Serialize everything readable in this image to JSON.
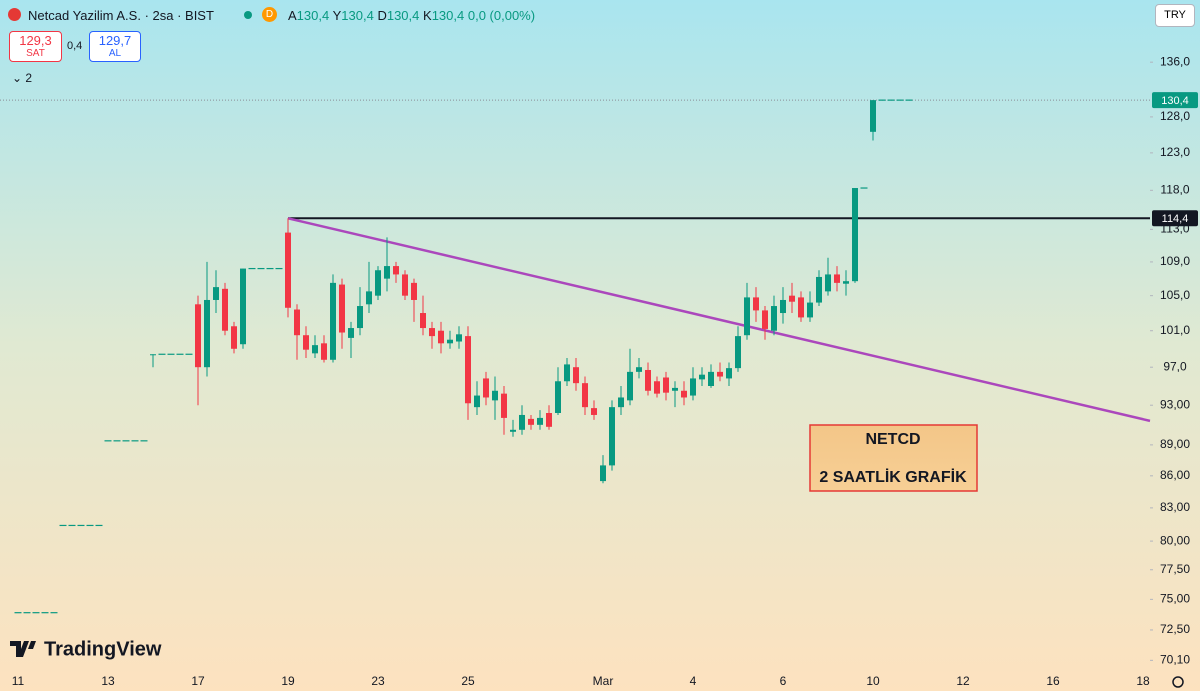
{
  "header": {
    "symbol": "Netcad Yazilim A.S. · 2sa · BIST",
    "badge": "D",
    "ohlc": [
      {
        "label": "A",
        "value": "130,4"
      },
      {
        "label": "Y",
        "value": "130,4"
      },
      {
        "label": "D",
        "value": "130,4"
      },
      {
        "label": "K",
        "value": "130,4"
      }
    ],
    "change": "0,0 (0,00%)",
    "sell": {
      "price": "129,3",
      "label": "SAT"
    },
    "spread": "0,4",
    "buy": {
      "price": "129,7",
      "label": "AL"
    },
    "indicators": "2",
    "currency": "TRY",
    "logo": "TradingView"
  },
  "chart_data": {
    "type": "candlestick",
    "up_color": "#089981",
    "down_color": "#f23645",
    "log_scale": true,
    "grid": false,
    "ylim": [
      69.2,
      145.7
    ],
    "yticks": [
      {
        "value": 136,
        "label": "136,0"
      },
      {
        "value": 128,
        "label": "128,0"
      },
      {
        "value": 123,
        "label": "123,0"
      },
      {
        "value": 118,
        "label": "118,0"
      },
      {
        "value": 113,
        "label": "113,0"
      },
      {
        "value": 109,
        "label": "109,0"
      },
      {
        "value": 105,
        "label": "105,0"
      },
      {
        "value": 101,
        "label": "101,0"
      },
      {
        "value": 97,
        "label": "97,0"
      },
      {
        "value": 93,
        "label": "93,00"
      },
      {
        "value": 89,
        "label": "89,00"
      },
      {
        "value": 86,
        "label": "86,00"
      },
      {
        "value": 83,
        "label": "83,00"
      },
      {
        "value": 80,
        "label": "80,00"
      },
      {
        "value": 77.5,
        "label": "77,50"
      },
      {
        "value": 75,
        "label": "75,00"
      },
      {
        "value": 72.5,
        "label": "72,50"
      },
      {
        "value": 70.1,
        "label": "70,10"
      }
    ],
    "categories": [
      "11",
      null,
      null,
      null,
      null,
      null,
      null,
      null,
      null,
      null,
      "13",
      null,
      null,
      null,
      null,
      null,
      null,
      null,
      null,
      null,
      "17",
      null,
      null,
      null,
      null,
      null,
      null,
      null,
      null,
      null,
      "19",
      null,
      null,
      null,
      null,
      null,
      null,
      null,
      null,
      null,
      "23",
      null,
      null,
      null,
      null,
      null,
      null,
      null,
      null,
      null,
      "25",
      null,
      null,
      null,
      null,
      null,
      null,
      null,
      null,
      null,
      null,
      null,
      null,
      null,
      null,
      "Mar",
      null,
      null,
      null,
      null,
      null,
      null,
      null,
      null,
      null,
      "4",
      null,
      null,
      null,
      null,
      null,
      null,
      null,
      null,
      null,
      "6",
      null,
      null,
      null,
      null,
      null,
      null,
      null,
      null,
      null,
      "10",
      null,
      null,
      null,
      null,
      null,
      null,
      null,
      null,
      null,
      "12",
      null,
      null,
      null,
      null,
      null,
      null,
      null,
      null,
      null,
      "16",
      null,
      null,
      null,
      null,
      null,
      null,
      null,
      null,
      null,
      "18",
      null
    ],
    "ohlc": [
      [
        73.9,
        73.9,
        73.9,
        73.9
      ],
      [
        73.9,
        73.9,
        73.9,
        73.9
      ],
      [
        73.9,
        73.9,
        73.9,
        73.9
      ],
      [
        73.9,
        73.9,
        73.9,
        73.9
      ],
      [
        73.9,
        73.9,
        73.9,
        73.9
      ],
      [
        81.4,
        81.4,
        81.4,
        81.4
      ],
      [
        81.4,
        81.4,
        81.4,
        81.4
      ],
      [
        81.4,
        81.4,
        81.4,
        81.4
      ],
      [
        81.4,
        81.4,
        81.4,
        81.4
      ],
      [
        81.4,
        81.4,
        81.4,
        81.4
      ],
      [
        89.4,
        89.4,
        89.4,
        89.4
      ],
      [
        89.4,
        89.4,
        89.4,
        89.4
      ],
      [
        89.4,
        89.4,
        89.4,
        89.4
      ],
      [
        89.4,
        89.4,
        89.4,
        89.4
      ],
      [
        89.4,
        89.4,
        89.4,
        89.4
      ],
      [
        98.4,
        98.4,
        97,
        98.4
      ],
      [
        98.4,
        98.4,
        98.4,
        98.4
      ],
      [
        98.4,
        98.4,
        98.4,
        98.4
      ],
      [
        98.4,
        98.4,
        98.4,
        98.4
      ],
      [
        98.4,
        98.4,
        98.4,
        98.4
      ],
      [
        104,
        105,
        93,
        97
      ],
      [
        97,
        109,
        96,
        104.5
      ],
      [
        104.5,
        108,
        103,
        106
      ],
      [
        105.8,
        106.5,
        100.5,
        101
      ],
      [
        101.5,
        102,
        98.5,
        99
      ],
      [
        99.5,
        108.2,
        99,
        108.2
      ],
      [
        108.2,
        108.2,
        108.2,
        108.2
      ],
      [
        108.2,
        108.2,
        108.2,
        108.2
      ],
      [
        108.2,
        108.2,
        108.2,
        108.2
      ],
      [
        108.2,
        108.2,
        108.2,
        108.2
      ],
      [
        112.6,
        114.4,
        102.5,
        103.6
      ],
      [
        103.4,
        104,
        97.8,
        100.5
      ],
      [
        100.5,
        101.5,
        98,
        98.9
      ],
      [
        98.5,
        100.5,
        98,
        99.4
      ],
      [
        99.6,
        100.5,
        97.5,
        97.8
      ],
      [
        97.8,
        107.5,
        97.5,
        106.5
      ],
      [
        106.3,
        107,
        99,
        100.8
      ],
      [
        100.2,
        102,
        98,
        101.3
      ],
      [
        101.3,
        106,
        100.5,
        103.8
      ],
      [
        104,
        109,
        103,
        105.5
      ],
      [
        105,
        108.5,
        104.5,
        108
      ],
      [
        107,
        112,
        105.5,
        108.5
      ],
      [
        108.5,
        109,
        106.5,
        107.5
      ],
      [
        107.5,
        108,
        104.5,
        105
      ],
      [
        106.5,
        107,
        102,
        104.5
      ],
      [
        103,
        105,
        100.5,
        101.3
      ],
      [
        101.3,
        102,
        99,
        100.4
      ],
      [
        101,
        102,
        98.5,
        99.6
      ],
      [
        99.6,
        101,
        99,
        100
      ],
      [
        99.8,
        101.5,
        99,
        100.6
      ],
      [
        100.4,
        101.5,
        91.5,
        93.2
      ],
      [
        92.8,
        95.5,
        92,
        94
      ],
      [
        95.8,
        96.5,
        93,
        93.8
      ],
      [
        93.5,
        96,
        91.5,
        94.5
      ],
      [
        94.2,
        95,
        90,
        91.7
      ],
      [
        90.3,
        91.5,
        89.8,
        90.5
      ],
      [
        90.5,
        93,
        90,
        92
      ],
      [
        91.6,
        92,
        90.5,
        91
      ],
      [
        91,
        92.5,
        90.5,
        91.7
      ],
      [
        92.2,
        93,
        90.5,
        90.8
      ],
      [
        92.2,
        97,
        92,
        95.5
      ],
      [
        95.5,
        98,
        95,
        97.3
      ],
      [
        97,
        98,
        94.5,
        95.3
      ],
      [
        95.3,
        96,
        92,
        92.8
      ],
      [
        92.7,
        93.5,
        91.5,
        92
      ],
      [
        85.5,
        88,
        85.3,
        87
      ],
      [
        87,
        93.5,
        86.5,
        92.8
      ],
      [
        92.8,
        95,
        92,
        93.8
      ],
      [
        93.5,
        99,
        93,
        96.5
      ],
      [
        96.5,
        98,
        95.8,
        97
      ],
      [
        96.7,
        97.5,
        94,
        94.5
      ],
      [
        95.5,
        96,
        93.8,
        94.2
      ],
      [
        95.9,
        96.5,
        93.5,
        94.3
      ],
      [
        94.5,
        95.5,
        92.8,
        94.8
      ],
      [
        94.5,
        95.5,
        93,
        93.8
      ],
      [
        94,
        97,
        93.5,
        95.8
      ],
      [
        95.7,
        97,
        95,
        96.2
      ],
      [
        95,
        97.3,
        94.8,
        96.5
      ],
      [
        96.5,
        97.5,
        95.5,
        96
      ],
      [
        95.8,
        97.5,
        95,
        96.9
      ],
      [
        96.9,
        101.5,
        96.5,
        100.4
      ],
      [
        100.5,
        106.5,
        100,
        104.8
      ],
      [
        104.8,
        106,
        102,
        103.3
      ],
      [
        103.3,
        103.8,
        100,
        101.2
      ],
      [
        101,
        105,
        100.5,
        103.8
      ],
      [
        103,
        106,
        101.8,
        104.5
      ],
      [
        105,
        106.5,
        103,
        104.3
      ],
      [
        104.8,
        105.5,
        102,
        102.5
      ],
      [
        102.5,
        105.5,
        102,
        104.2
      ],
      [
        104.2,
        108,
        103.8,
        107.2
      ],
      [
        105.5,
        109.5,
        105,
        107.5
      ],
      [
        107.5,
        108.5,
        105.5,
        106.5
      ],
      [
        106.4,
        108,
        105,
        106.7
      ],
      [
        106.7,
        118.3,
        106.5,
        118.3
      ],
      [
        118.3,
        118.3,
        118.3,
        118.3
      ],
      [
        125.9,
        130.4,
        124.7,
        130.4
      ],
      [
        130.4,
        130.4,
        130.4,
        130.4
      ],
      [
        130.4,
        130.4,
        130.4,
        130.4
      ],
      [
        130.4,
        130.4,
        130.4,
        130.4
      ],
      [
        130.4,
        130.4,
        130.4,
        130.4
      ],
      null,
      null,
      null,
      null,
      null,
      null,
      null,
      null,
      null,
      null,
      null,
      null,
      null,
      null,
      null,
      null,
      null,
      null,
      null,
      null,
      null,
      null,
      null,
      null,
      null,
      null,
      null
    ],
    "price_lines": [
      {
        "value": 130.4,
        "label": "130,4",
        "color": "#089981",
        "style": "dotted"
      },
      {
        "value": 114.4,
        "label": "114,4",
        "color": "#131722",
        "style": "solid"
      }
    ],
    "trendline": {
      "values": [
        114.4,
        91.4
      ],
      "color": "#ab47bc"
    },
    "annotation": {
      "lines": [
        "NETCD",
        "2 SAATLİK GRAFİK"
      ]
    }
  }
}
